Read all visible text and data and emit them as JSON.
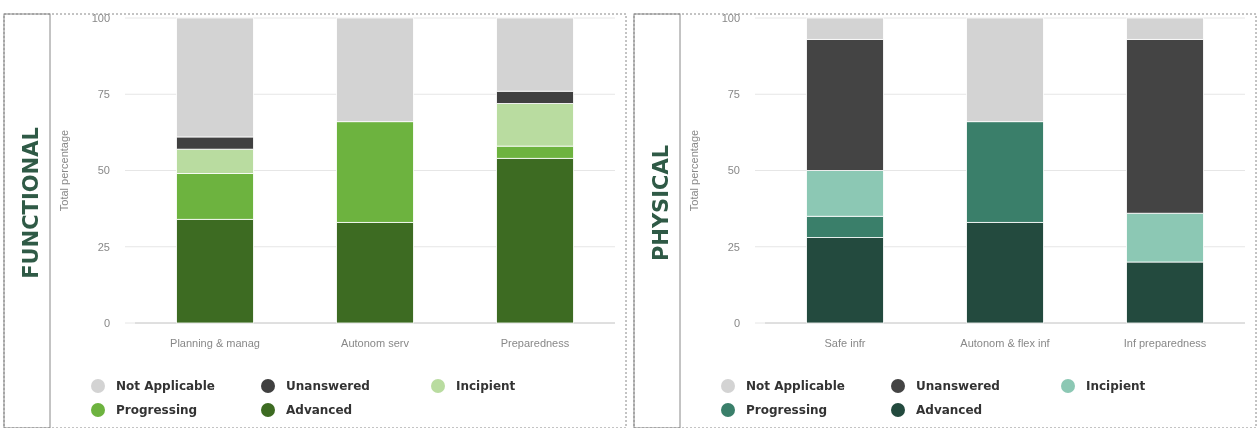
{
  "chart_data": [
    {
      "type": "bar",
      "title": "FUNCTIONAL",
      "ylabel": "Total percentage",
      "categories": [
        "Planning & manag",
        "Autonom serv",
        "Preparedness"
      ],
      "stacked": true,
      "ylim": [
        0,
        100
      ],
      "yticks": [
        0,
        25,
        50,
        75,
        100
      ],
      "grid": "y",
      "legend": "bottom",
      "series": [
        {
          "name": "Advanced",
          "color": "#3d6b22",
          "values": [
            34,
            33,
            54
          ]
        },
        {
          "name": "Progressing",
          "color": "#6db33f",
          "values": [
            15,
            33,
            4
          ]
        },
        {
          "name": "Incipient",
          "color": "#b9dca0",
          "values": [
            8,
            0,
            14
          ]
        },
        {
          "name": "Unanswered",
          "color": "#404040",
          "values": [
            4,
            0,
            4
          ]
        },
        {
          "name": "Not Applicable",
          "color": "#d3d3d3",
          "values": [
            39,
            34,
            24
          ]
        }
      ]
    },
    {
      "type": "bar",
      "title": "PHYSICAL",
      "ylabel": "Total percentage",
      "categories": [
        "Safe infr",
        "Autonom & flex inf",
        "Inf preparedness"
      ],
      "stacked": true,
      "ylim": [
        0,
        100
      ],
      "yticks": [
        0,
        25,
        50,
        75,
        100
      ],
      "grid": "y",
      "legend": "bottom",
      "series": [
        {
          "name": "Advanced",
          "color": "#234a3e",
          "values": [
            28,
            33,
            20
          ]
        },
        {
          "name": "Progressing",
          "color": "#3a7f6a",
          "values": [
            7,
            33,
            0
          ]
        },
        {
          "name": "Incipient",
          "color": "#8cc8b4",
          "values": [
            15,
            0,
            16
          ]
        },
        {
          "name": "Unanswered",
          "color": "#444444",
          "values": [
            43,
            0,
            57
          ]
        },
        {
          "name": "Not Applicable",
          "color": "#d3d3d3",
          "values": [
            7,
            34,
            7
          ]
        }
      ]
    }
  ]
}
